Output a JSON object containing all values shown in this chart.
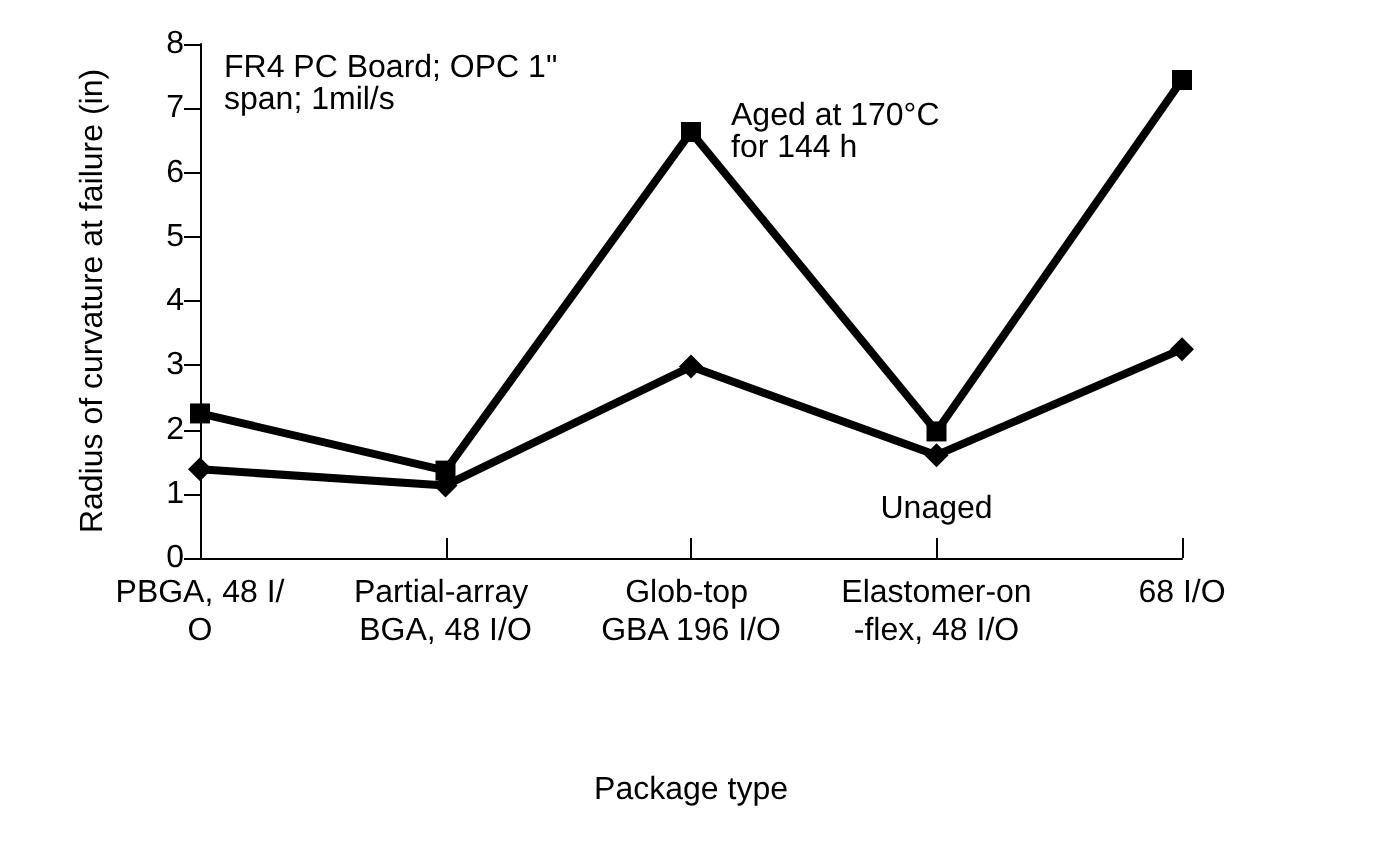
{
  "chart_data": {
    "type": "line",
    "xlabel": "Package type",
    "ylabel": "Radius of curvature at failure (in)",
    "categories": [
      "PBGA, 48 I/O",
      "Partial-array BGA, 48 I/O",
      "Glob-top GBA 196 I/O",
      "Elastomer-on-flex, 48 I/O",
      "68 I/O"
    ],
    "series": [
      {
        "name": "Aged at 170°C for 144 h",
        "color": "#000000",
        "marker": "square",
        "values": [
          2.25,
          1.36,
          6.63,
          1.97,
          7.44
        ]
      },
      {
        "name": "Unaged",
        "color": "#000000",
        "marker": "diamond",
        "values": [
          1.38,
          1.13,
          2.98,
          1.6,
          3.25
        ]
      }
    ],
    "ylim": [
      0,
      8
    ],
    "yticks": [
      0,
      1,
      2,
      3,
      4,
      5,
      6,
      7,
      8
    ],
    "grid": false,
    "legend": false,
    "line_style": "solid",
    "annotations": [
      "FR4 PC Board; OPC 1\" span; 1mil/s"
    ]
  }
}
